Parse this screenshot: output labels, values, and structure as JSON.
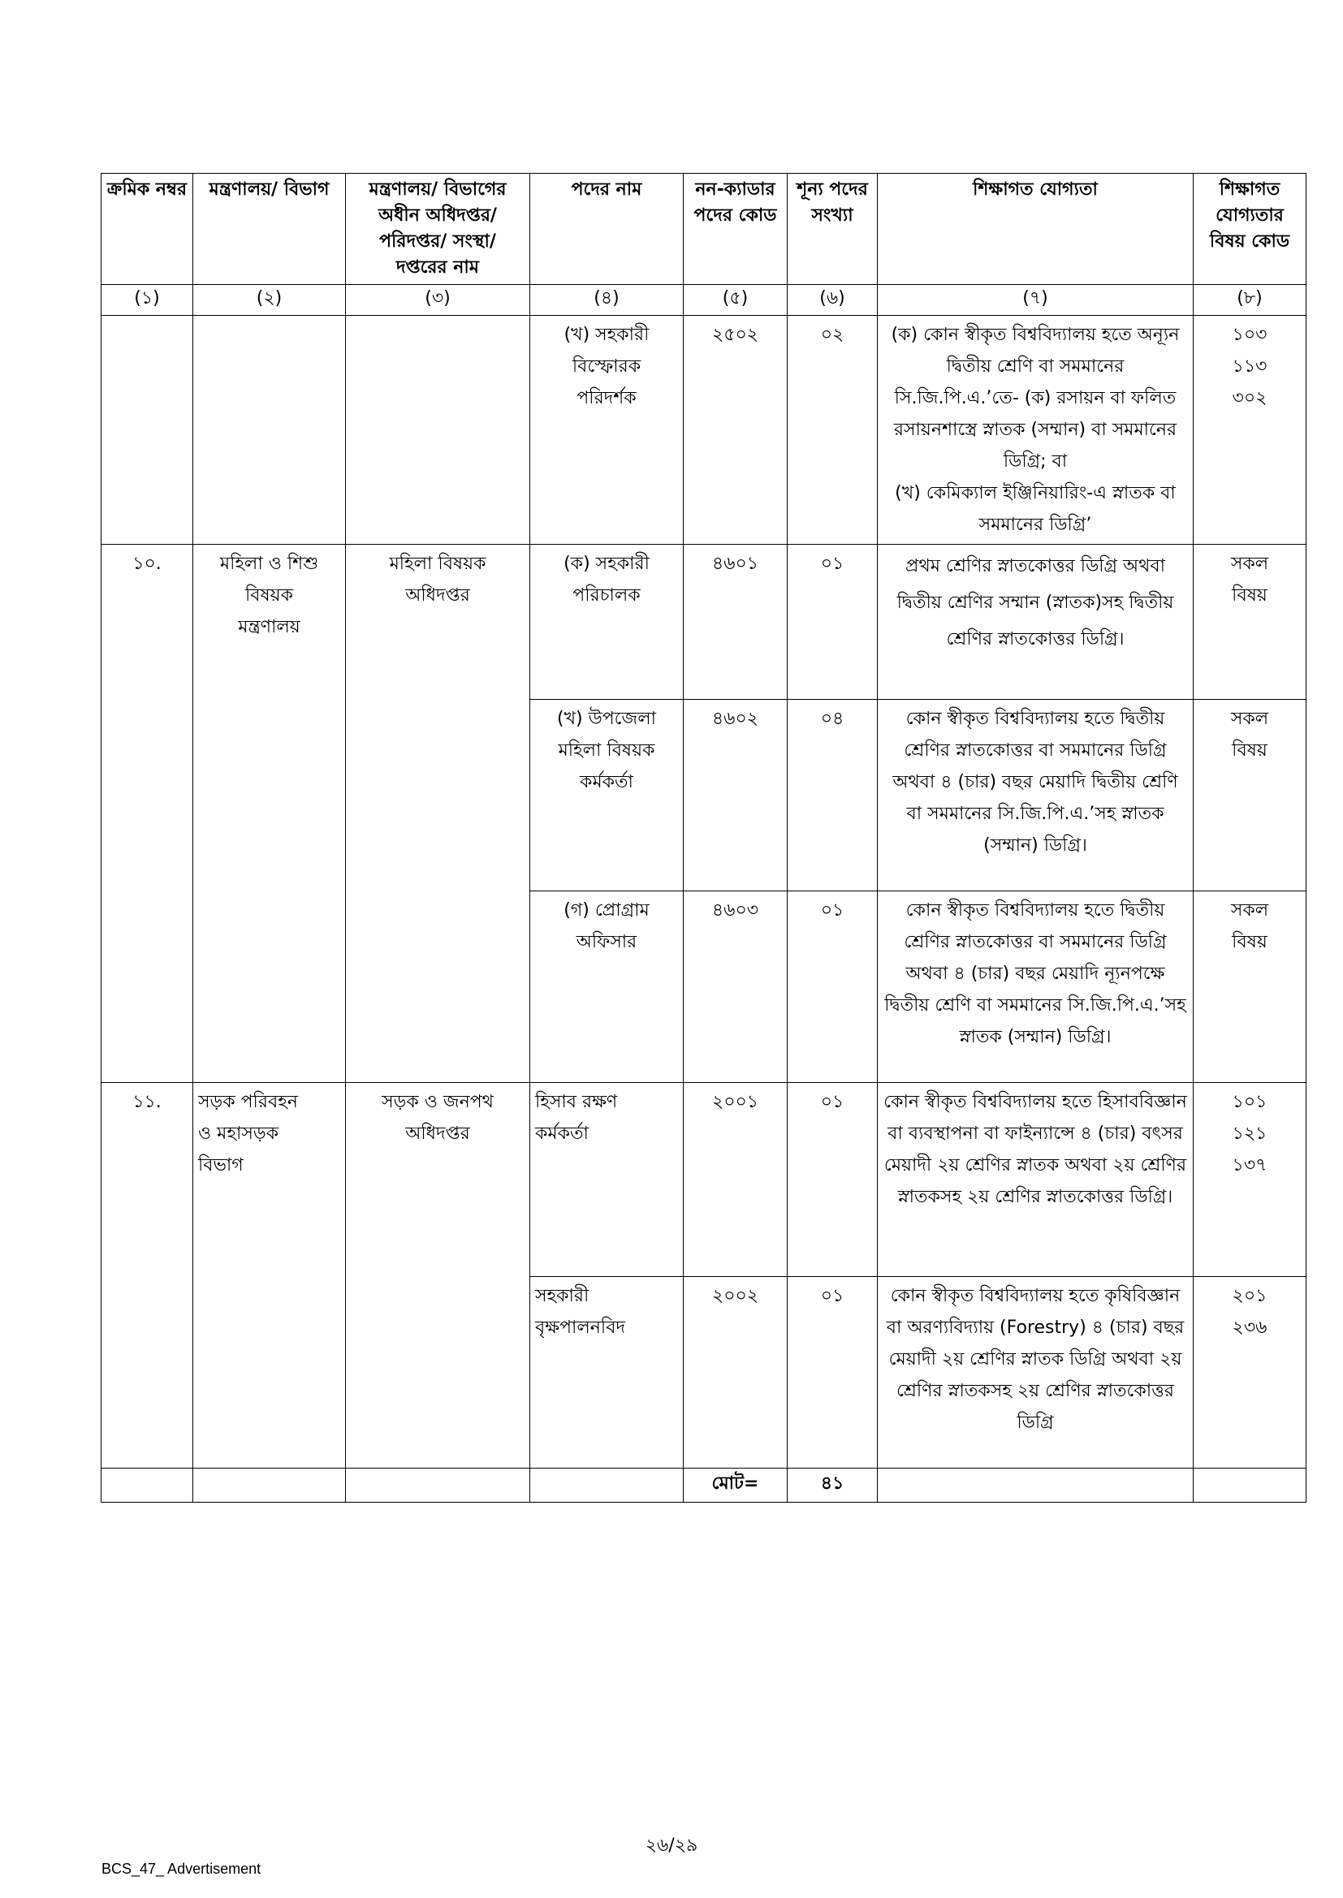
{
  "table": {
    "headers": [
      "ক্রমিক নম্বর",
      "মন্ত্রণালয়/ বিভাগ",
      "মন্ত্রণালয়/ বিভাগের অধীন অধিদপ্তর/ পরিদপ্তর/ সংস্থা/ দপ্তরের নাম",
      "পদের নাম",
      "নন-ক্যাডার পদের কোড",
      "শূন্য পদের সংখ্যা",
      "শিক্ষাগত যোগ্যতা",
      "শিক্ষাগত যোগ্যতার বিষয় কোড"
    ],
    "col_numbers": [
      "(১)",
      "(২)",
      "(৩)",
      "(৪)",
      "(৫)",
      "(৬)",
      "(৭)",
      "(৮)"
    ],
    "rows": [
      {
        "serial": "",
        "ministry": "",
        "department": "",
        "post": "(খ) সহকারী\nবিস্ফোরক\nপরিদর্শক",
        "code": "২৫০২",
        "vacancies": "০২",
        "qualification": "(ক) কোন স্বীকৃত বিশ্ববিদ্যালয় হতে অন্যূন দ্বিতীয় শ্রেণি বা সমমানের সি.জি.পি.এ.’তে- (ক) রসায়ন বা ফলিত রসায়নশাস্ত্রে স্নাতক (সম্মান) বা সমমানের ডিগ্রি; বা\n(খ) কেমিক্যাল ইঞ্জিনিয়ারিং-এ স্নাতক বা সমমানের ডিগ্রি’",
        "subject_codes": "১০৩\n১১৩\n৩০২"
      },
      {
        "serial": "১০.",
        "ministry": "মহিলা ও শিশু\nবিষয়ক\nমন্ত্রণালয়",
        "department": "মহিলা বিষয়ক\nঅধিদপ্তর",
        "post": "(ক) সহকারী\nপরিচালক",
        "code": "৪৬০১",
        "vacancies": "০১",
        "qualification": "প্রথম শ্রেণির স্নাতকোত্তর ডিগ্রি অথবা দ্বিতীয় শ্রেণির সম্মান (স্নাতক)সহ দ্বিতীয় শ্রেণির স্নাতকোত্তর ডিগ্রি।",
        "subject_codes": "সকল\nবিষয়"
      },
      {
        "serial": "",
        "ministry": "",
        "department": "",
        "post": "(খ) উপজেলা\nমহিলা বিষয়ক\nকর্মকর্তা",
        "code": "৪৬০২",
        "vacancies": "০৪",
        "qualification": "কোন স্বীকৃত বিশ্ববিদ্যালয় হতে দ্বিতীয় শ্রেণির স্নাতকোত্তর বা সমমানের ডিগ্রি অথবা ৪ (চার) বছর মেয়াদি দ্বিতীয় শ্রেণি বা সমমানের সি.জি.পি.এ.’সহ স্নাতক (সম্মান) ডিগ্রি।",
        "subject_codes": "সকল\nবিষয়"
      },
      {
        "serial": "",
        "ministry": "",
        "department": "",
        "post": "(গ) প্রোগ্রাম\nঅফিসার",
        "code": "৪৬০৩",
        "vacancies": "০১",
        "qualification": "কোন স্বীকৃত বিশ্ববিদ্যালয় হতে দ্বিতীয় শ্রেণির স্নাতকোত্তর বা সমমানের ডিগ্রি অথবা ৪ (চার) বছর মেয়াদি ন্যূনপক্ষে দ্বিতীয় শ্রেণি বা সমমানের সি.জি.পি.এ.’সহ স্নাতক (সম্মান) ডিগ্রি।",
        "subject_codes": "সকল\nবিষয়"
      },
      {
        "serial": "১১.",
        "ministry": "সড়ক পরিবহন\nও মহাসড়ক\nবিভাগ",
        "department": "সড়ক ও জনপথ\nঅধিদপ্তর",
        "post": "হিসাব রক্ষণ\nকর্মকর্তা",
        "code": "২০০১",
        "vacancies": "০১",
        "qualification": "কোন স্বীকৃত বিশ্ববিদ্যালয় হতে হিসাববিজ্ঞান বা ব্যবস্থাপনা বা ফাইন্যান্সে ৪ (চার) বৎসর মেয়াদী ২য় শ্রেণির স্নাতক অথবা ২য় শ্রেণির স্নাতকসহ ২য় শ্রেণির স্নাতকোত্তর ডিগ্রি।",
        "subject_codes": "১০১\n১২১\n১৩৭"
      },
      {
        "serial": "",
        "ministry": "",
        "department": "",
        "post": "সহকারী\nবৃক্ষপালনবিদ",
        "code": "২০০২",
        "vacancies": "০১",
        "qualification": "কোন স্বীকৃত বিশ্ববিদ্যালয় হতে কৃষিবিজ্ঞান বা অরণ্যবিদ্যায় (Forestry) ৪ (চার) বছর মেয়াদী ২য় শ্রেণির স্নাতক ডিগ্রি অথবা ২য় শ্রেণির স্নাতকসহ ২য় শ্রেণির স্নাতকোত্তর ডিগ্রি",
        "subject_codes": "২০১\n২৩৬"
      }
    ],
    "total_label": "মোট=",
    "total_value": "৪১"
  },
  "page_number": "২৬/২৯",
  "footer": "BCS_47_ Advertisement"
}
